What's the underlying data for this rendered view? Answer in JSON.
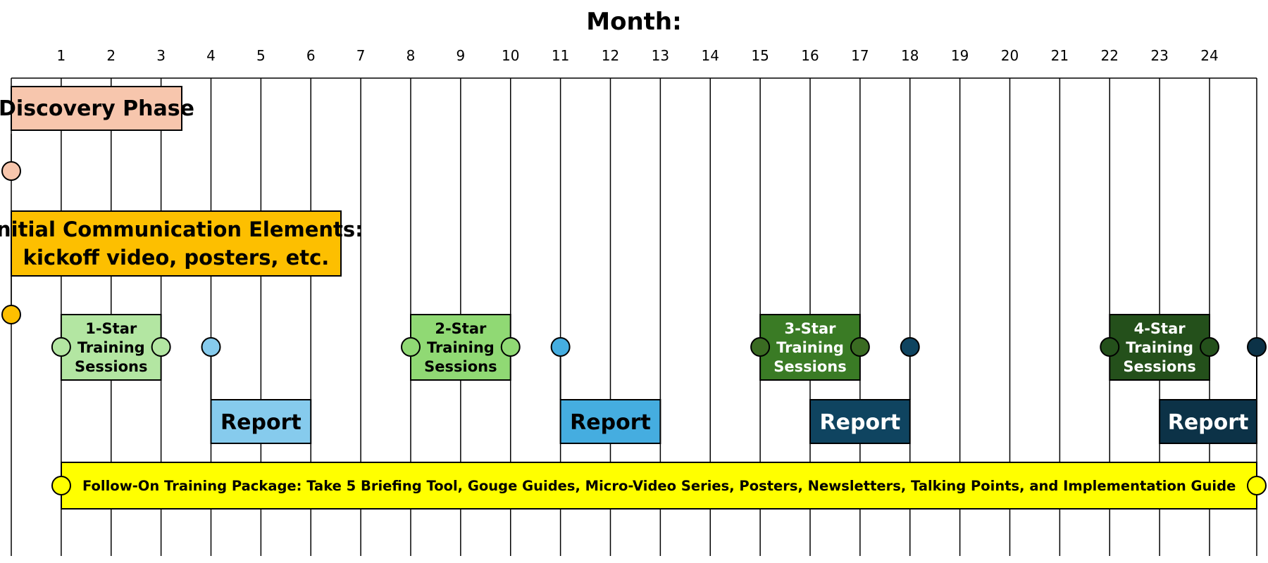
{
  "header": {
    "title": "Month:"
  },
  "months": [
    "1",
    "2",
    "3",
    "4",
    "5",
    "6",
    "7",
    "8",
    "9",
    "10",
    "11",
    "12",
    "13",
    "14",
    "15",
    "16",
    "17",
    "18",
    "19",
    "20",
    "21",
    "22",
    "23",
    "24"
  ],
  "discovery": {
    "label": "Discovery Phase",
    "color": "#f7c6ad"
  },
  "initial_comm": {
    "line1": "Initial Communication Elements:",
    "line2": "kickoff video, posters, etc.",
    "color": "#fdbf00"
  },
  "trainings": [
    {
      "line1": "1-Star",
      "line2": "Training",
      "line3": "Sessions",
      "fill": "#b3e6a2",
      "node": "#b3e6a2",
      "text_color": "#000000"
    },
    {
      "line1": "2-Star",
      "line2": "Training",
      "line3": "Sessions",
      "fill": "#90d974",
      "node": "#90d974",
      "text_color": "#000000"
    },
    {
      "line1": "3-Star",
      "line2": "Training",
      "line3": "Sessions",
      "fill": "#3a7b25",
      "node": "#3a6b22",
      "text_color": "#ffffff"
    },
    {
      "line1": "4-Star",
      "line2": "Training",
      "line3": "Sessions",
      "fill": "#24501b",
      "node": "#24501b",
      "text_color": "#ffffff"
    }
  ],
  "reports": [
    {
      "label": "Report",
      "fill": "#86cbed",
      "node": "#86cbed",
      "text_color": "#000000"
    },
    {
      "label": "Report",
      "fill": "#45ade0",
      "node": "#45ade0",
      "text_color": "#000000"
    },
    {
      "label": "Report",
      "fill": "#0f4460",
      "node": "#0f4460",
      "text_color": "#ffffff"
    },
    {
      "label": "Report",
      "fill": "#0c3247",
      "node": "#0c3247",
      "text_color": "#ffffff"
    }
  ],
  "follow_on": {
    "label": "Follow-On Training Package: Take 5 Briefing Tool, Gouge Guides, Micro-Video Series, Posters, Newsletters, Talking Points, and Implementation Guide",
    "color": "#ffff00"
  }
}
